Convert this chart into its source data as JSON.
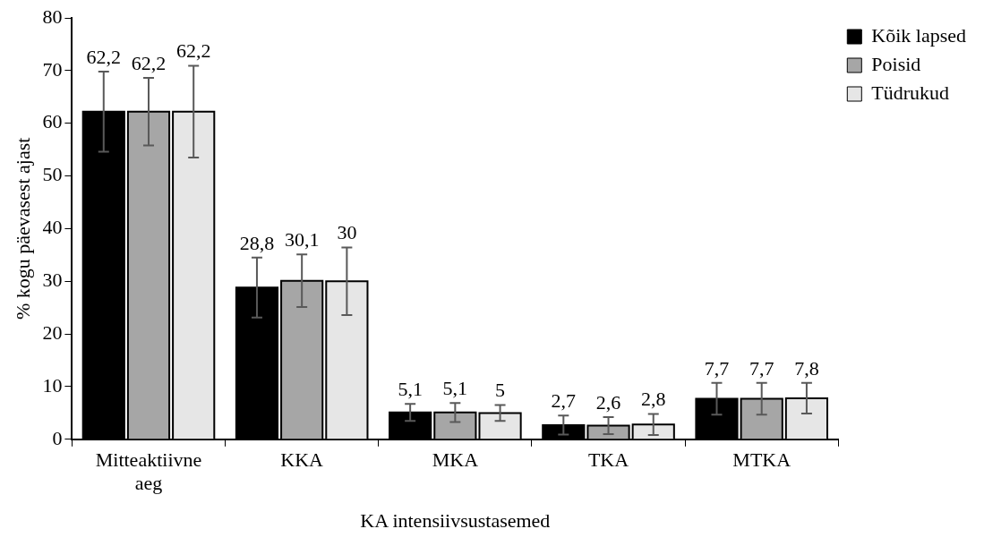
{
  "chart_data": {
    "type": "bar",
    "xlabel": "KA intensiivsustasemed",
    "ylabel": "% kogu päevasest ajast",
    "categories": [
      "Mitteaktiivne aeg",
      "KKA",
      "MKA",
      "TKA",
      "MTKA"
    ],
    "series": [
      {
        "name": "Kõik lapsed",
        "color": "#000000",
        "values": [
          62.2,
          28.8,
          5.1,
          2.7,
          7.7
        ],
        "errors": [
          7.6,
          5.7,
          1.6,
          1.8,
          3.0
        ],
        "value_labels": [
          "62,2",
          "28,8",
          "5,1",
          "2,7",
          "7,7"
        ]
      },
      {
        "name": "Poisid",
        "color": "#a6a6a6",
        "values": [
          62.2,
          30.1,
          5.1,
          2.6,
          7.7
        ],
        "errors": [
          6.4,
          5.0,
          1.8,
          1.6,
          3.0
        ],
        "value_labels": [
          "62,2",
          "30,1",
          "5,1",
          "2,6",
          "7,7"
        ]
      },
      {
        "name": "Tüdrukud",
        "color": "#e6e6e6",
        "values": [
          62.2,
          30,
          5,
          2.8,
          7.8
        ],
        "errors": [
          8.7,
          6.4,
          1.5,
          2.0,
          2.9
        ],
        "value_labels": [
          "62,2",
          "30",
          "5",
          "2,8",
          "7,8"
        ]
      }
    ],
    "ylim": [
      0,
      80
    ],
    "yticks": [
      0,
      10,
      20,
      30,
      40,
      50,
      60,
      70,
      80
    ],
    "grid": false,
    "legend": "top right"
  }
}
